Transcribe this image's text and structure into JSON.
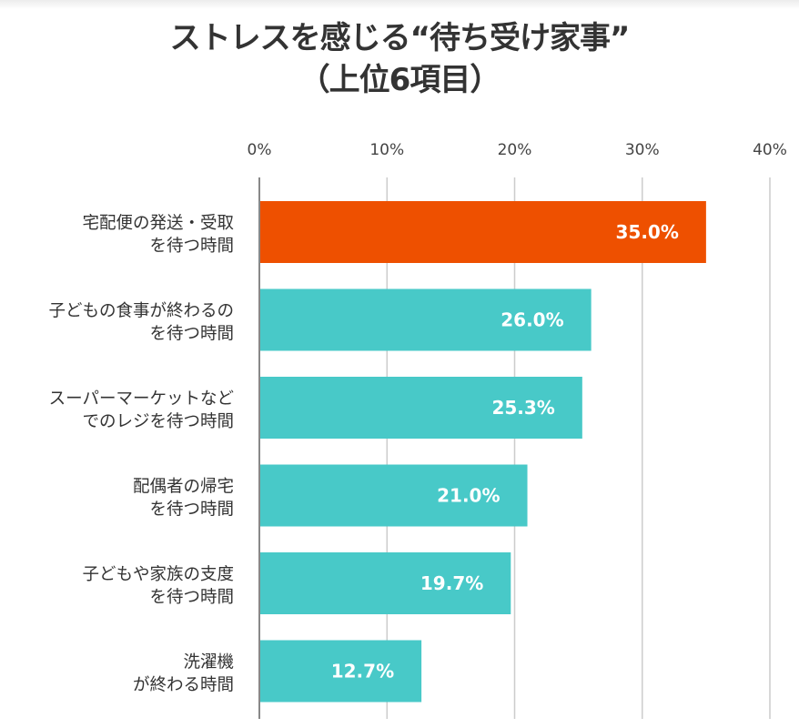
{
  "chart_data": {
    "type": "bar",
    "orientation": "horizontal",
    "title": [
      "ストレスを感じる“待ち受け家事”",
      "（上位6項目）"
    ],
    "categories": [
      [
        "宅配便の発送・受取",
        "を待つ時間"
      ],
      [
        "子どもの食事が終わるの",
        "を待つ時間"
      ],
      [
        "スーパーマーケットなど",
        "でのレジを待つ時間"
      ],
      [
        "配偶者の帰宅",
        "を待つ時間"
      ],
      [
        "子どもや家族の支度",
        "を待つ時間"
      ],
      [
        "洗濯機",
        "が終わる時間"
      ]
    ],
    "values": [
      35.0,
      26.0,
      25.3,
      21.0,
      19.7,
      12.7
    ],
    "data_labels": [
      "35.0%",
      "26.0%",
      "25.3%",
      "21.0%",
      "19.7%",
      "12.7%"
    ],
    "xlim": [
      0,
      40
    ],
    "ticks": [
      0,
      10,
      20,
      30,
      40
    ],
    "tick_labels": [
      "0%",
      "10%",
      "20%",
      "30%",
      "40%"
    ],
    "xlabel": "",
    "ylabel": "",
    "grid": true,
    "colors": {
      "highlight": "#EE5000",
      "default": "#48C9C8",
      "grid": "#cccccc",
      "axis": "#888888"
    }
  }
}
